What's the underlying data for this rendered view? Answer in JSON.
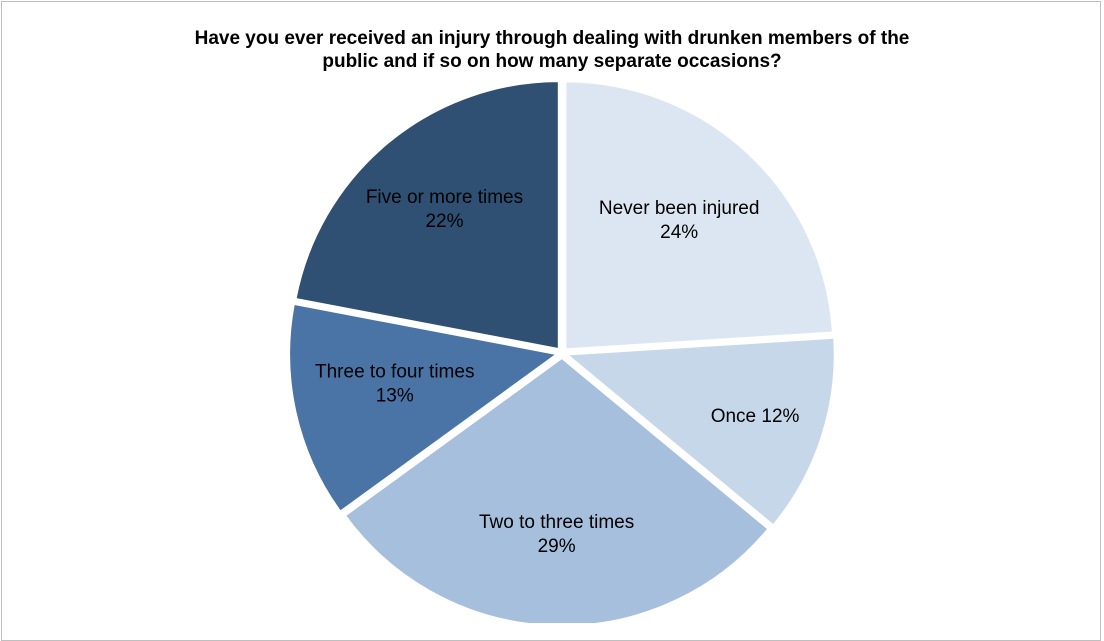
{
  "chart_data": {
    "type": "pie",
    "title_lines": [
      "Have you ever received an injury through dealing with drunken members of the",
      "public and if so on how many separate occasions?"
    ],
    "slices": [
      {
        "name": "Never been injured",
        "value": 24,
        "value_label": "24%",
        "color": "#dce6f2",
        "label_lines": [
          "Never been injured",
          "24%"
        ]
      },
      {
        "name": "Once",
        "value": 12,
        "value_label": "12%",
        "color": "#c6d7ea",
        "label_lines": [
          "Once 12%"
        ]
      },
      {
        "name": "Two to three times",
        "value": 29,
        "value_label": "29%",
        "color": "#a5bfdd",
        "label_lines": [
          "Two to three times",
          "29%"
        ]
      },
      {
        "name": "Three to four times",
        "value": 13,
        "value_label": "13%",
        "color": "#4a74a6",
        "label_lines": [
          "Three to four times",
          "13%"
        ]
      },
      {
        "name": "Five or more times",
        "value": 22,
        "value_label": "22%",
        "color": "#2f5073",
        "label_lines": [
          "Five or more times",
          "22%"
        ]
      }
    ],
    "start_angle": "12 o'clock",
    "direction": "clockwise",
    "legend": "none",
    "labels": "inside slices"
  }
}
